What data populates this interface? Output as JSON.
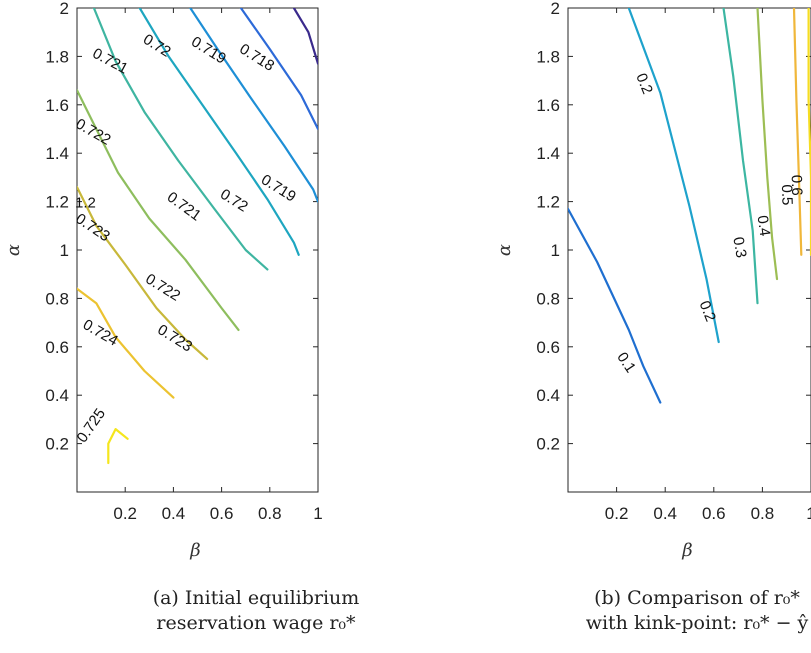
{
  "chart_data": [
    {
      "type": "contour",
      "xlabel": "β",
      "ylabel": "α",
      "xlim": [
        0,
        1
      ],
      "ylim": [
        0,
        2
      ],
      "xticks": [
        "0.2",
        "0.4",
        "0.6",
        "0.8",
        "1"
      ],
      "yticks": [
        "0.2",
        "0.4",
        "0.6",
        "0.8",
        "1",
        "1.2",
        "1.4",
        "1.6",
        "1.8",
        "2"
      ],
      "caption": [
        "(a) Initial equilibrium",
        "reservation wage r₀*"
      ],
      "contours": [
        {
          "level": "0.725",
          "color": "#f5e61d",
          "points": [
            [
              0.13,
              0.12
            ],
            [
              0.13,
              0.2
            ],
            [
              0.16,
              0.26
            ],
            [
              0.21,
              0.22
            ]
          ]
        },
        {
          "level": "0.724",
          "color": "#ecc331",
          "points": [
            [
              0.0,
              0.84
            ],
            [
              0.08,
              0.78
            ],
            [
              0.16,
              0.64
            ],
            [
              0.28,
              0.5
            ],
            [
              0.4,
              0.39
            ]
          ]
        },
        {
          "level": "0.723",
          "color": "#c8b83a",
          "points": [
            [
              0.0,
              1.26
            ],
            [
              0.08,
              1.1
            ],
            [
              0.2,
              0.94
            ],
            [
              0.33,
              0.76
            ],
            [
              0.45,
              0.63
            ],
            [
              0.54,
              0.55
            ]
          ]
        },
        {
          "level": "0.722",
          "color": "#8ebe5e",
          "points": [
            [
              0.0,
              1.66
            ],
            [
              0.07,
              1.52
            ],
            [
              0.17,
              1.32
            ],
            [
              0.3,
              1.13
            ],
            [
              0.45,
              0.96
            ],
            [
              0.6,
              0.76
            ],
            [
              0.67,
              0.67
            ]
          ]
        },
        {
          "level": "0.721",
          "color": "#3fb5a1",
          "points": [
            [
              0.07,
              2.0
            ],
            [
              0.16,
              1.78
            ],
            [
              0.28,
              1.57
            ],
            [
              0.42,
              1.37
            ],
            [
              0.57,
              1.17
            ],
            [
              0.7,
              1.0
            ],
            [
              0.79,
              0.92
            ]
          ]
        },
        {
          "level": "0.72",
          "color": "#1ea6c0",
          "points": [
            [
              0.26,
              2.0
            ],
            [
              0.38,
              1.8
            ],
            [
              0.52,
              1.6
            ],
            [
              0.66,
              1.4
            ],
            [
              0.79,
              1.21
            ],
            [
              0.9,
              1.03
            ],
            [
              0.92,
              0.98
            ]
          ]
        },
        {
          "level": "0.719",
          "color": "#1e8fd6",
          "points": [
            [
              0.47,
              2.0
            ],
            [
              0.59,
              1.82
            ],
            [
              0.72,
              1.63
            ],
            [
              0.86,
              1.43
            ],
            [
              0.98,
              1.25
            ],
            [
              1.0,
              1.2
            ]
          ]
        },
        {
          "level": "0.718",
          "color": "#2d6ad8",
          "points": [
            [
              0.68,
              2.0
            ],
            [
              0.8,
              1.83
            ],
            [
              0.93,
              1.64
            ],
            [
              1.0,
              1.5
            ]
          ]
        },
        {
          "level": "",
          "color": "#3a2a8c",
          "points": [
            [
              0.9,
              2.0
            ],
            [
              0.96,
              1.9
            ],
            [
              1.0,
              1.77
            ]
          ]
        }
      ],
      "labels": [
        {
          "text": "0.721",
          "x": 0.06,
          "y": 1.8,
          "rot": 28
        },
        {
          "text": "0.72",
          "x": 0.27,
          "y": 1.86,
          "rot": 32
        },
        {
          "text": "0.719",
          "x": 0.47,
          "y": 1.85,
          "rot": 32
        },
        {
          "text": "0.718",
          "x": 0.67,
          "y": 1.82,
          "rot": 32
        },
        {
          "text": "0.722",
          "x": -0.01,
          "y": 1.51,
          "rot": 30
        },
        {
          "text": "0.721",
          "x": 0.37,
          "y": 1.21,
          "rot": 36
        },
        {
          "text": "0.72",
          "x": 0.59,
          "y": 1.22,
          "rot": 32
        },
        {
          "text": "0.719",
          "x": 0.76,
          "y": 1.28,
          "rot": 32
        },
        {
          "text": "0.723",
          "x": -0.01,
          "y": 1.12,
          "rot": 34
        },
        {
          "text": "0.722",
          "x": 0.28,
          "y": 0.87,
          "rot": 32
        },
        {
          "text": "0.724",
          "x": 0.02,
          "y": 0.68,
          "rot": 30
        },
        {
          "text": "0.723",
          "x": 0.33,
          "y": 0.66,
          "rot": 32
        },
        {
          "text": "0.725",
          "x": 0.03,
          "y": 0.2,
          "rot": -55
        }
      ],
      "extra_label": {
        "text": "1.2",
        "x": 0.0,
        "y": 1.2
      }
    },
    {
      "type": "contour",
      "xlabel": "β",
      "ylabel": "α",
      "xlim": [
        0,
        1
      ],
      "ylim": [
        0,
        2
      ],
      "xticks": [
        "0.2",
        "0.4",
        "0.6",
        "0.8",
        "1"
      ],
      "yticks": [
        "0.2",
        "0.4",
        "0.6",
        "0.8",
        "1",
        "1.2",
        "1.4",
        "1.6",
        "1.8",
        "2"
      ],
      "caption": [
        "(b) Comparison of r₀*",
        "with kink-point: r₀* − ŷ"
      ],
      "contours": [
        {
          "level": "0.1",
          "color": "#1f6fd0",
          "points": [
            [
              0.0,
              1.17
            ],
            [
              0.12,
              0.95
            ],
            [
              0.25,
              0.67
            ],
            [
              0.31,
              0.52
            ],
            [
              0.38,
              0.37
            ]
          ]
        },
        {
          "level": "0.2",
          "color": "#1ea2cc",
          "points": [
            [
              0.25,
              2.0
            ],
            [
              0.38,
              1.65
            ],
            [
              0.5,
              1.18
            ],
            [
              0.57,
              0.88
            ],
            [
              0.62,
              0.62
            ]
          ]
        },
        {
          "level": "0.3",
          "color": "#3cb6a2",
          "points": [
            [
              0.64,
              2.0
            ],
            [
              0.68,
              1.72
            ],
            [
              0.72,
              1.37
            ],
            [
              0.76,
              1.08
            ],
            [
              0.78,
              0.78
            ]
          ]
        },
        {
          "level": "0.4",
          "color": "#9dbe54",
          "points": [
            [
              0.78,
              2.0
            ],
            [
              0.8,
              1.62
            ],
            [
              0.82,
              1.3
            ],
            [
              0.84,
              1.05
            ],
            [
              0.86,
              0.88
            ]
          ]
        },
        {
          "level": "0.5",
          "color": "#f0b73a",
          "points": [
            [
              0.93,
              2.0
            ],
            [
              0.94,
              1.62
            ],
            [
              0.95,
              1.3
            ],
            [
              0.96,
              0.98
            ]
          ]
        },
        {
          "level": "0.6",
          "color": "#f5dd22",
          "points": [
            [
              0.99,
              2.0
            ],
            [
              0.99,
              1.62
            ],
            [
              1.0,
              1.3
            ],
            [
              1.0,
              0.98
            ]
          ]
        }
      ],
      "labels": [
        {
          "text": "0.2",
          "x": 0.28,
          "y": 1.72,
          "rot": 68
        },
        {
          "text": "0.2",
          "x": 0.54,
          "y": 0.78,
          "rot": 68
        },
        {
          "text": "0.1",
          "x": 0.2,
          "y": 0.56,
          "rot": 56
        },
        {
          "text": "0.3",
          "x": 0.68,
          "y": 1.05,
          "rot": 80
        },
        {
          "text": "0.4",
          "x": 0.78,
          "y": 1.14,
          "rot": 82
        },
        {
          "text": "0.5",
          "x": 0.88,
          "y": 1.27,
          "rot": 88
        },
        {
          "text": "0.6",
          "x": 0.92,
          "y": 1.31,
          "rot": 88
        }
      ]
    }
  ]
}
